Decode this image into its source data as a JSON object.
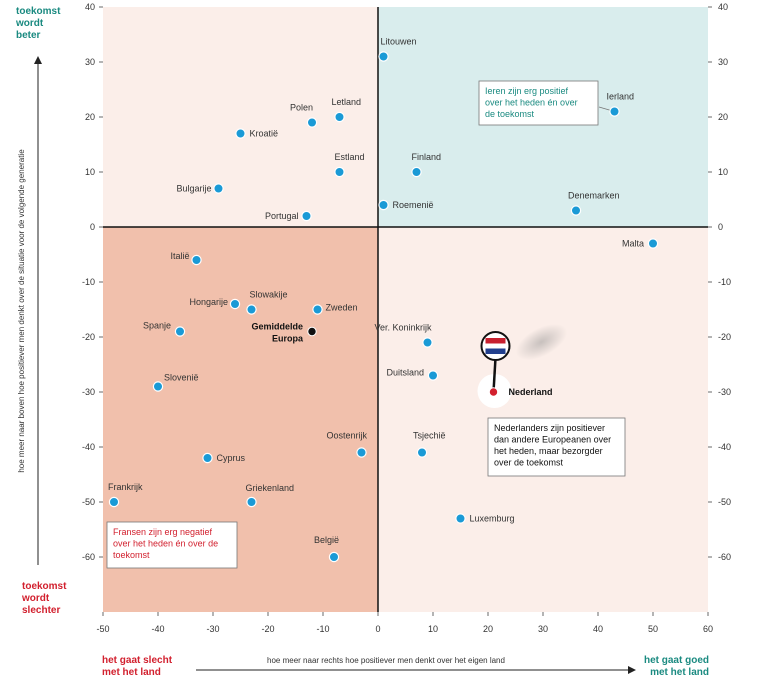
{
  "chart_data": {
    "type": "scatter",
    "xlim": [
      -50,
      60
    ],
    "ylim": [
      -70,
      40
    ],
    "x_ticks": [
      -50,
      -40,
      -30,
      -20,
      -10,
      0,
      10,
      20,
      30,
      40,
      50,
      60
    ],
    "y_ticks": [
      40,
      30,
      20,
      10,
      0,
      -10,
      -20,
      -30,
      -40,
      -50,
      -60
    ],
    "xlabel": "hoe meer naar rechts hoe positiever men denkt over het eigen land",
    "ylabel": "hoe meer naar boven hoe positiever men denkt over de situatie voor de volgende generatie",
    "corner_labels": {
      "top": [
        "toekomst",
        "wordt",
        "beter"
      ],
      "bottom": [
        "toekomst",
        "wordt",
        "slechter"
      ],
      "left": [
        "het gaat slecht",
        "met het land"
      ],
      "right": [
        "het gaat goed",
        "met het land"
      ]
    },
    "points": [
      {
        "name": "Litouwen",
        "x": 1,
        "y": 31
      },
      {
        "name": "Ierland",
        "x": 43,
        "y": 21
      },
      {
        "name": "Polen",
        "x": -12,
        "y": 19
      },
      {
        "name": "Letland",
        "x": -7,
        "y": 20
      },
      {
        "name": "Kroatië",
        "x": -25,
        "y": 17
      },
      {
        "name": "Estland",
        "x": -7,
        "y": 10
      },
      {
        "name": "Finland",
        "x": 7,
        "y": 10
      },
      {
        "name": "Bulgarije",
        "x": -29,
        "y": 7
      },
      {
        "name": "Roemenië",
        "x": 1,
        "y": 4
      },
      {
        "name": "Portugal",
        "x": -13,
        "y": 2
      },
      {
        "name": "Denemarken",
        "x": 36,
        "y": 3
      },
      {
        "name": "Malta",
        "x": 50,
        "y": -3
      },
      {
        "name": "Italië",
        "x": -33,
        "y": -6
      },
      {
        "name": "Hongarije",
        "x": -26,
        "y": -14
      },
      {
        "name": "Slowakije",
        "x": -23,
        "y": -15
      },
      {
        "name": "Zweden",
        "x": -11,
        "y": -15
      },
      {
        "name": "Spanje",
        "x": -36,
        "y": -19
      },
      {
        "name": "Gemiddelde Europa",
        "x": -12,
        "y": -19,
        "average": true
      },
      {
        "name": "Ver. Koninkrijk",
        "x": 9,
        "y": -21
      },
      {
        "name": "Nederland",
        "x": 21,
        "y": -30,
        "highlight": true
      },
      {
        "name": "Duitsland",
        "x": 10,
        "y": -27
      },
      {
        "name": "Slovenië",
        "x": -40,
        "y": -29
      },
      {
        "name": "Oostenrijk",
        "x": -3,
        "y": -41
      },
      {
        "name": "Tsjechië",
        "x": 8,
        "y": -41
      },
      {
        "name": "Cyprus",
        "x": -31,
        "y": -42
      },
      {
        "name": "Frankrijk",
        "x": -48,
        "y": -50
      },
      {
        "name": "Griekenland",
        "x": -23,
        "y": -50
      },
      {
        "name": "Luxemburg",
        "x": 15,
        "y": -53
      },
      {
        "name": "België",
        "x": -8,
        "y": -60
      }
    ],
    "annotations": [
      {
        "target": "Ierland",
        "lines": [
          "Ieren zijn erg positief",
          "over het heden én over",
          "de toekomst"
        ]
      },
      {
        "target": "Nederland",
        "lines": [
          "Nederlanders zijn positiever",
          "dan andere Europeanen over",
          "het heden, maar bezorgder",
          "over de toekomst"
        ]
      },
      {
        "target": "Frankrijk",
        "lines": [
          "Fransen zijn erg negatief",
          "over het heden én over de",
          "toekomst"
        ]
      }
    ],
    "colors": {
      "top_right": "#d9eded",
      "bottom_left": "#f1c0ac",
      "other": "#fbeee9",
      "point": "#1a9ad6",
      "average_point": "#111111",
      "highlight_point": "#d2202e",
      "teal_text": "#1a8a80",
      "red_text": "#d2202e"
    }
  }
}
